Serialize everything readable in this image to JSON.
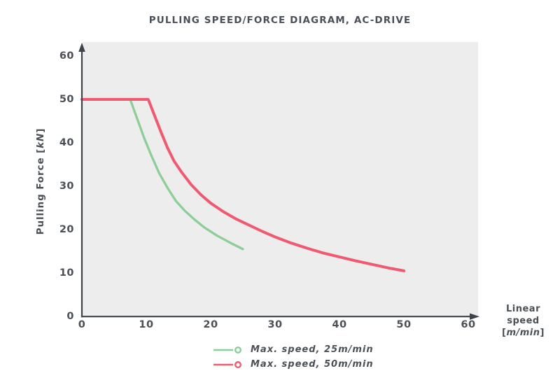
{
  "chart_data": {
    "type": "line",
    "title": "PULLING SPEED/FORCE DIAGRAM, AC-DRIVE",
    "xlabel": "Linear speed [m/min]",
    "ylabel": "Pulling Force [kN]",
    "xlim": [
      0,
      60
    ],
    "ylim": [
      0,
      60
    ],
    "x_ticks": [
      0,
      10,
      20,
      30,
      40,
      50,
      60
    ],
    "y_ticks": [
      0,
      10,
      20,
      30,
      40,
      50,
      60
    ],
    "grid": false,
    "legend_position": "bottom",
    "series": [
      {
        "name": "Max. speed, 25m/min",
        "color": "#8DCE98",
        "points": [
          [
            0,
            50
          ],
          [
            7.5,
            50
          ],
          [
            8.6,
            45.5
          ],
          [
            9.7,
            41
          ],
          [
            10.8,
            37
          ],
          [
            12,
            33
          ],
          [
            13.3,
            29.6
          ],
          [
            14.6,
            26.6
          ],
          [
            16,
            24.3
          ],
          [
            17.5,
            22.3
          ],
          [
            19,
            20.5
          ],
          [
            21,
            18.6
          ],
          [
            23,
            17
          ],
          [
            25,
            15.5
          ]
        ]
      },
      {
        "name": "Max. speed, 50m/min",
        "color": "#EF5A71",
        "points": [
          [
            0,
            50
          ],
          [
            10.3,
            50
          ],
          [
            11.3,
            46.2
          ],
          [
            12.3,
            42.4
          ],
          [
            13.3,
            38.8
          ],
          [
            14.3,
            35.8
          ],
          [
            15.5,
            33.2
          ],
          [
            17,
            30.3
          ],
          [
            18.5,
            28
          ],
          [
            20,
            26.1
          ],
          [
            22,
            24.1
          ],
          [
            24,
            22.4
          ],
          [
            26,
            21
          ],
          [
            28,
            19.6
          ],
          [
            30,
            18.3
          ],
          [
            32.5,
            16.9
          ],
          [
            35,
            15.7
          ],
          [
            37.5,
            14.6
          ],
          [
            40,
            13.7
          ],
          [
            42.5,
            12.8
          ],
          [
            45,
            12
          ],
          [
            47.5,
            11.2
          ],
          [
            50,
            10.5
          ]
        ]
      }
    ]
  },
  "ylabel": {
    "prefix": "Pulling Force [",
    "unit": "kN",
    "suffix": "]"
  },
  "xlabel": {
    "line1": "Linear",
    "line2": "speed",
    "open": "[",
    "unit": "m/min",
    "close": "]"
  },
  "legend": {
    "items": [
      {
        "label": "Max. speed, 25m/min",
        "color": "#8DCE98"
      },
      {
        "label": "Max. speed, 50m/min",
        "color": "#EF5A71"
      }
    ]
  },
  "colors": {
    "green": "#8DCE98",
    "red": "#EF5A71",
    "text": "#4A5056",
    "axis": "#3C434B"
  }
}
